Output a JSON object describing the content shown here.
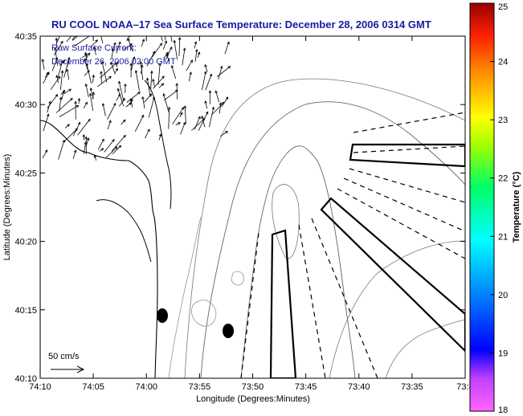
{
  "chart_data": {
    "type": "map",
    "title": "RU COOL  NOAA–17  Sea Surface Temperature:  December 28, 2006 0314 GMT",
    "annotation_line1": "Raw Surface Current:",
    "annotation_line2": "December 26, 2006 02:00 GMT",
    "xlabel": "Longitude (Degrees:Minutes)",
    "ylabel": "Latitude (Degrees:Minutes)",
    "x_ticks": [
      "74:10",
      "74:05",
      "74:00",
      "73:55",
      "73:50",
      "73:45",
      "73:40",
      "73:35",
      "73:3"
    ],
    "y_ticks": [
      "40:35",
      "40:30",
      "40:25",
      "40:20",
      "40:15",
      "40:10"
    ],
    "colorbar": {
      "label": "Temperature (°C)",
      "ticks": [
        "25",
        "24",
        "23",
        "22",
        "21",
        "20",
        "19",
        "18"
      ],
      "range": [
        18,
        25
      ]
    },
    "scale_label": "50 cm/s",
    "colors": {
      "title": "#1a1aa0",
      "contour": "#555555",
      "coast": "#000000"
    }
  }
}
